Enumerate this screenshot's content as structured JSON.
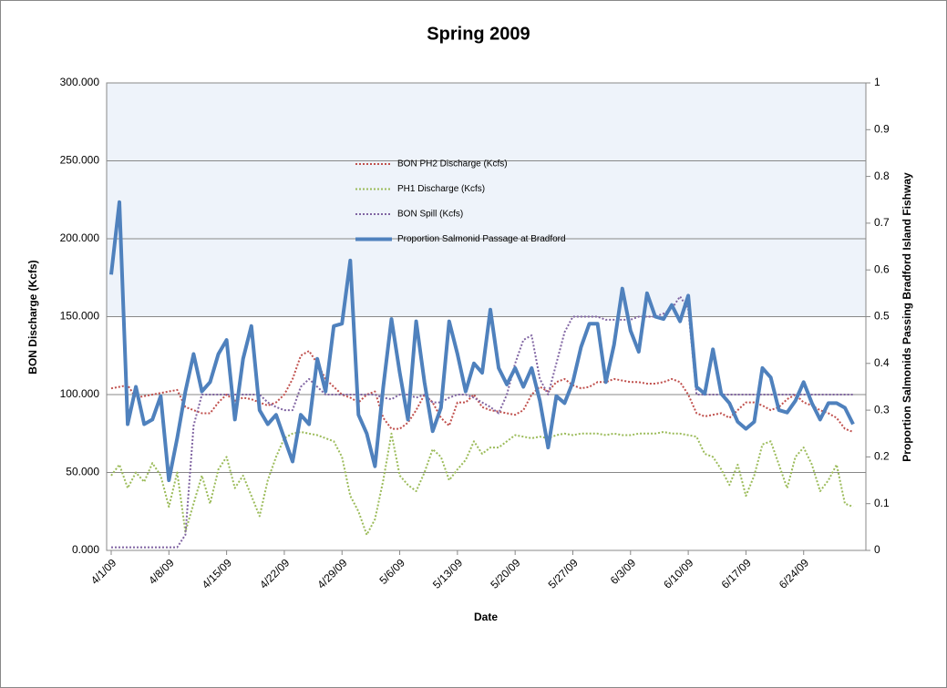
{
  "chart_data": {
    "type": "line",
    "title": "Spring 2009",
    "x_label": "Date",
    "y_label": "BON Discharge (Kcfs)",
    "y2_label": "Proportion Salmonids Passing Bradford Island Fishway",
    "categories": [
      "4/1/09",
      null,
      null,
      null,
      null,
      null,
      null,
      "4/8/09",
      null,
      null,
      null,
      null,
      null,
      null,
      "4/15/09",
      null,
      null,
      null,
      null,
      null,
      null,
      "4/22/09",
      null,
      null,
      null,
      null,
      null,
      null,
      "4/29/09",
      null,
      null,
      null,
      null,
      null,
      null,
      "5/6/09",
      null,
      null,
      null,
      null,
      null,
      null,
      "5/13/09",
      null,
      null,
      null,
      null,
      null,
      null,
      "5/20/09",
      null,
      null,
      null,
      null,
      null,
      null,
      "5/27/09",
      null,
      null,
      null,
      null,
      null,
      null,
      "6/3/09",
      null,
      null,
      null,
      null,
      null,
      null,
      "6/10/09",
      null,
      null,
      null,
      null,
      null,
      null,
      "6/17/09",
      null,
      null,
      null,
      null,
      null,
      null,
      "6/24/09",
      null,
      null,
      null,
      null,
      null,
      null
    ],
    "series": [
      {
        "name": "BON PH2 Discharge (Kcfs)",
        "color": "#c0504d",
        "line_style": "dotted",
        "values": [
          104,
          105,
          106,
          98,
          99,
          100,
          101,
          102,
          103,
          92,
          90,
          88,
          88,
          95,
          100,
          96,
          98,
          97,
          95,
          93,
          95,
          100,
          110,
          125,
          128,
          120,
          110,
          105,
          100,
          98,
          95,
          100,
          102,
          85,
          78,
          78,
          82,
          90,
          100,
          95,
          85,
          80,
          95,
          95,
          100,
          92,
          90,
          89,
          88,
          87,
          90,
          100,
          105,
          102,
          108,
          110,
          106,
          104,
          105,
          108,
          108,
          110,
          109,
          108,
          108,
          107,
          107,
          108,
          110,
          108,
          100,
          88,
          86,
          87,
          88,
          85,
          90,
          95,
          95,
          93,
          90,
          92,
          97,
          100,
          95,
          93,
          90,
          88,
          85,
          78,
          76
        ]
      },
      {
        "name": "PH1 Discharge (Kcfs)",
        "color": "#9bbb59",
        "line_style": "dotted",
        "values": [
          48,
          55,
          40,
          50,
          44,
          56,
          48,
          28,
          50,
          12,
          30,
          48,
          30,
          52,
          60,
          40,
          48,
          35,
          22,
          45,
          60,
          72,
          75,
          76,
          75,
          74,
          72,
          70,
          60,
          35,
          25,
          10,
          20,
          45,
          75,
          48,
          42,
          38,
          50,
          65,
          60,
          45,
          52,
          58,
          70,
          62,
          66,
          66,
          70,
          74,
          73,
          72,
          73,
          72,
          74,
          75,
          74,
          75,
          75,
          75,
          74,
          75,
          74,
          74,
          75,
          75,
          75,
          76,
          75,
          75,
          74,
          73,
          62,
          60,
          52,
          42,
          55,
          35,
          48,
          68,
          70,
          55,
          40,
          60,
          66,
          55,
          38,
          45,
          55,
          30,
          28
        ]
      },
      {
        "name": "BON Spill  (Kcfs)",
        "color": "#8064a2",
        "line_style": "dotted",
        "values": [
          2,
          2,
          2,
          2,
          2,
          2,
          2,
          2,
          2,
          10,
          80,
          100,
          100,
          100,
          100,
          100,
          100,
          100,
          100,
          95,
          92,
          90,
          90,
          105,
          110,
          105,
          100,
          100,
          100,
          100,
          100,
          100,
          100,
          98,
          97,
          100,
          100,
          98,
          100,
          95,
          95,
          98,
          100,
          100,
          98,
          95,
          92,
          88,
          100,
          120,
          135,
          138,
          110,
          100,
          120,
          140,
          150,
          150,
          150,
          150,
          148,
          148,
          148,
          148,
          150,
          150,
          150,
          152,
          155,
          163,
          155,
          100,
          100,
          100,
          100,
          100,
          100,
          100,
          100,
          100,
          100,
          100,
          100,
          100,
          100,
          100,
          100,
          100,
          100,
          100,
          100
        ]
      },
      {
        "name": "Proportion Salmonid  Passage at Bradford",
        "color": "#4f81bd",
        "line_style": "solid",
        "axis": "y2",
        "values": [
          0.59,
          0.745,
          0.27,
          0.35,
          0.27,
          0.28,
          0.33,
          0.15,
          0.24,
          0.34,
          0.42,
          0.34,
          0.36,
          0.42,
          0.45,
          0.28,
          0.41,
          0.48,
          0.3,
          0.27,
          0.29,
          0.24,
          0.19,
          0.29,
          0.27,
          0.41,
          0.34,
          0.48,
          0.485,
          0.62,
          0.29,
          0.25,
          0.18,
          0.35,
          0.495,
          0.38,
          0.28,
          0.49,
          0.36,
          0.255,
          0.305,
          0.49,
          0.42,
          0.34,
          0.4,
          0.38,
          0.515,
          0.39,
          0.355,
          0.39,
          0.35,
          0.39,
          0.32,
          0.22,
          0.33,
          0.315,
          0.36,
          0.435,
          0.485,
          0.485,
          0.36,
          0.44,
          0.56,
          0.47,
          0.425,
          0.55,
          0.5,
          0.495,
          0.525,
          0.49,
          0.545,
          0.35,
          0.335,
          0.43,
          0.335,
          0.315,
          0.275,
          0.26,
          0.275,
          0.39,
          0.37,
          0.3,
          0.295,
          0.32,
          0.36,
          0.315,
          0.28,
          0.315,
          0.315,
          0.305,
          0.27
        ]
      }
    ],
    "ylim": [
      0,
      300
    ],
    "yticks": [
      {
        "value": 0,
        "label": "0.000"
      },
      {
        "value": 50,
        "label": "50.000"
      },
      {
        "value": 100,
        "label": "100.000"
      },
      {
        "value": 150,
        "label": "150.000"
      },
      {
        "value": 200,
        "label": "200.000"
      },
      {
        "value": 250,
        "label": "250.000"
      },
      {
        "value": 300,
        "label": "300.000"
      }
    ],
    "y2lim": [
      0,
      1
    ],
    "y2ticks": [
      0,
      0.1,
      0.2,
      0.3,
      0.4,
      0.5,
      0.6,
      0.7,
      0.8,
      0.9,
      1
    ],
    "grid": true,
    "legend": "top"
  }
}
